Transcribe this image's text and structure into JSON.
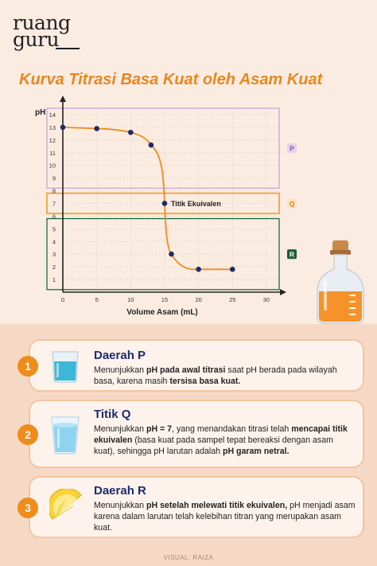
{
  "brand": {
    "line1": "ruang",
    "line2": "guru"
  },
  "title": "Kurva Titrasi Basa Kuat oleh Asam Kuat",
  "chart_data": {
    "type": "line",
    "ylabel": "pH",
    "xlabel": "Volume Asam (mL)",
    "xlim": [
      0,
      32
    ],
    "ylim": [
      0,
      14.5
    ],
    "x_ticks": [
      0,
      5,
      10,
      15,
      20,
      25,
      30
    ],
    "y_ticks": [
      1,
      2,
      3,
      4,
      5,
      6,
      7,
      8,
      9,
      10,
      11,
      12,
      13,
      14
    ],
    "grid": true,
    "series": [
      {
        "color": "#f08c1c",
        "points": [
          [
            0,
            13
          ],
          [
            5,
            12.9
          ],
          [
            10,
            12.6
          ],
          [
            13,
            11.6
          ],
          [
            15,
            7
          ],
          [
            16,
            3
          ],
          [
            19,
            1.8
          ],
          [
            20,
            1.8
          ],
          [
            25,
            1.8
          ]
        ]
      }
    ],
    "markers": [
      [
        0,
        13
      ],
      [
        5,
        12.9
      ],
      [
        10,
        12.6
      ],
      [
        13,
        11.6
      ],
      [
        15,
        7
      ],
      [
        16,
        3
      ],
      [
        20,
        1.8
      ],
      [
        25,
        1.8
      ]
    ],
    "annotation": {
      "text": "Titik Ekuivalen",
      "x": 15,
      "y": 7
    },
    "regions": [
      {
        "label": "P",
        "y_from": 8.2,
        "y_to": 14.5,
        "color": "#c9a6d6"
      },
      {
        "label": "Q",
        "y_from": 6.2,
        "y_to": 7.8,
        "color": "#f2a43a"
      },
      {
        "label": "R",
        "y_from": 0.2,
        "y_to": 5.8,
        "color": "#1b6b3a"
      }
    ]
  },
  "cards": [
    {
      "num": "1",
      "title": "Daerah P",
      "body": [
        {
          "t": "Menunjukkan ",
          "b": false
        },
        {
          "t": "pH pada awal titrasi",
          "b": true
        },
        {
          "t": " saat pH berada pada wilayah basa, karena masih ",
          "b": false
        },
        {
          "t": "tersisa basa kuat.",
          "b": true
        }
      ]
    },
    {
      "num": "2",
      "title": "Titik Q",
      "body": [
        {
          "t": "Menunjukkan ",
          "b": false
        },
        {
          "t": "pH = 7",
          "b": true
        },
        {
          "t": ", yang menandakan titrasi telah ",
          "b": false
        },
        {
          "t": "mencapai titik ekuivalen",
          "b": true
        },
        {
          "t": " (basa kuat pada sampel tepat bereaksi dengan asam kuat), sehingga pH larutan adalah ",
          "b": false
        },
        {
          "t": "pH garam netral.",
          "b": true
        }
      ]
    },
    {
      "num": "3",
      "title": "Daerah R",
      "body": [
        {
          "t": "Menunjukkan ",
          "b": false
        },
        {
          "t": "pH setelah melewati titik ekuivalen,",
          "b": true
        },
        {
          "t": " pH menjadi asam karena dalam larutan telah kelebihan titran yang merupakan asam kuat.",
          "b": false
        }
      ]
    }
  ],
  "credit": "VISUAL: RAIZA"
}
